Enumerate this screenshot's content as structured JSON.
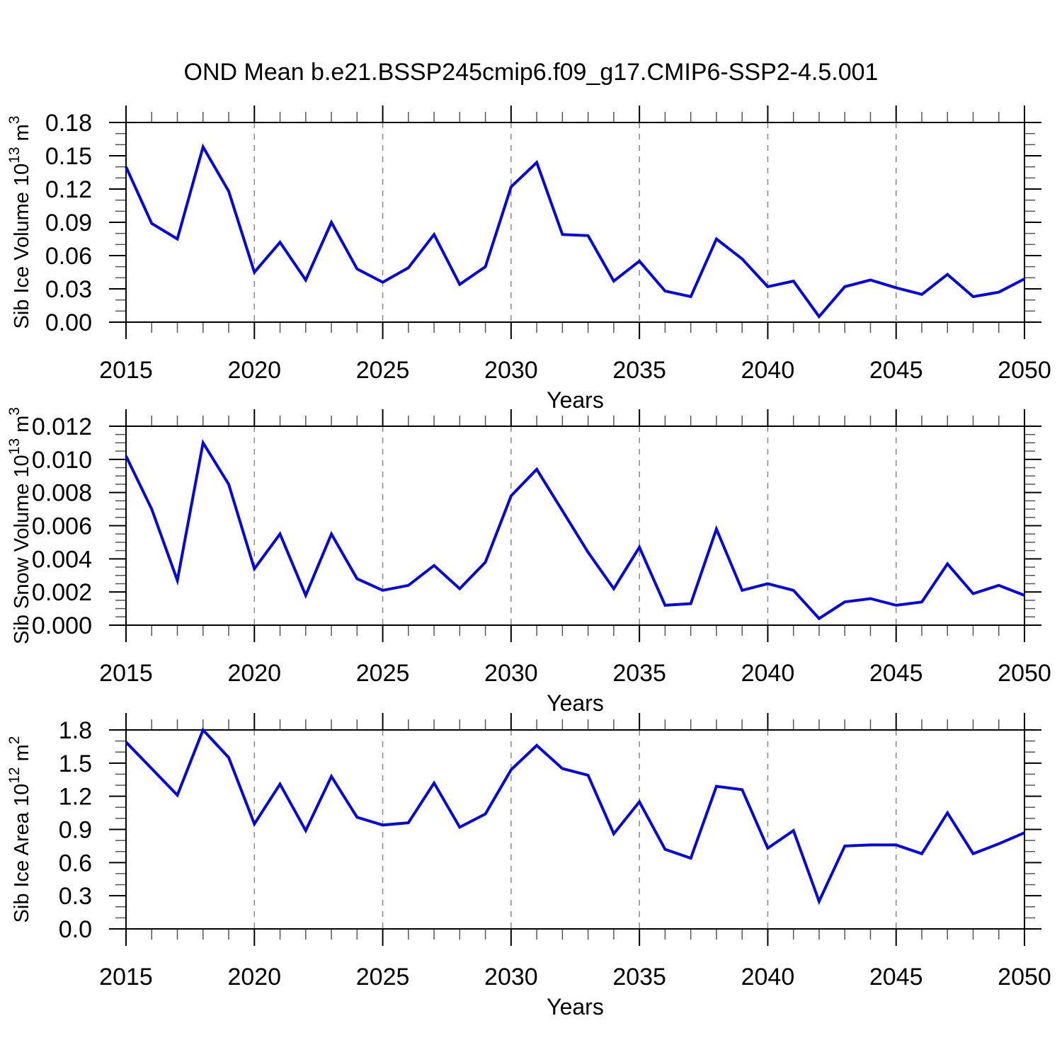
{
  "title": "OND Mean b.e21.BSSP245cmip6.f09_g17.CMIP6-SSP2-4.5.001",
  "style": {
    "line_color": "#0505e0",
    "grid_color": "#888888",
    "axis_color": "#000000",
    "minor_tick_color": "#555555"
  },
  "chart_data": [
    {
      "type": "line",
      "name": "sib-ice-volume",
      "xlabel": "Years",
      "ylabel": "Sib Ice Volume 10^13 m^3",
      "ylabel_parts": [
        {
          "t": "Sib Ice Volume 10"
        },
        {
          "t": "13",
          "sup": true
        },
        {
          "t": " m"
        },
        {
          "t": "3",
          "sup": true
        }
      ],
      "x": [
        2015,
        2016,
        2017,
        2018,
        2019,
        2020,
        2021,
        2022,
        2023,
        2024,
        2025,
        2026,
        2027,
        2028,
        2029,
        2030,
        2031,
        2032,
        2033,
        2034,
        2035,
        2036,
        2037,
        2038,
        2039,
        2040,
        2041,
        2042,
        2043,
        2044,
        2045,
        2046,
        2047,
        2048,
        2049,
        2050
      ],
      "series": [
        {
          "name": "Sib Ice Volume",
          "values": [
            0.14,
            0.089,
            0.075,
            0.158,
            0.118,
            0.045,
            0.072,
            0.038,
            0.09,
            0.048,
            0.036,
            0.049,
            0.079,
            0.034,
            0.05,
            0.122,
            0.144,
            0.079,
            0.078,
            0.037,
            0.055,
            0.028,
            0.023,
            0.075,
            0.057,
            0.032,
            0.037,
            0.005,
            0.032,
            0.038,
            0.031,
            0.025,
            0.043,
            0.023,
            0.027,
            0.039
          ]
        }
      ],
      "xlim": [
        2015,
        2050
      ],
      "ylim": [
        0,
        0.18
      ],
      "xtick_values": [
        2015,
        2020,
        2025,
        2030,
        2035,
        2040,
        2045,
        2050
      ],
      "xtick_labels": [
        "2015",
        "2020",
        "2025",
        "2030",
        "2035",
        "2040",
        "2045",
        "2050"
      ],
      "x_minor_step": 1,
      "ytick_values": [
        0.0,
        0.03,
        0.06,
        0.09,
        0.12,
        0.15,
        0.18
      ],
      "ytick_labels": [
        "0.00",
        "0.03",
        "0.06",
        "0.09",
        "0.12",
        "0.15",
        "0.18"
      ],
      "y_minor_step": 0.01,
      "grid_x": [
        2020,
        2025,
        2030,
        2035,
        2040,
        2045
      ],
      "grid_style": "vertical-dashed",
      "legend": "none"
    },
    {
      "type": "line",
      "name": "sib-snow-volume",
      "xlabel": "Years",
      "ylabel": "Sib Snow Volume 10^13 m^3",
      "ylabel_parts": [
        {
          "t": "Sib Snow Volume 10"
        },
        {
          "t": "13",
          "sup": true
        },
        {
          "t": " m"
        },
        {
          "t": "3",
          "sup": true
        }
      ],
      "x": [
        2015,
        2016,
        2017,
        2018,
        2019,
        2020,
        2021,
        2022,
        2023,
        2024,
        2025,
        2026,
        2027,
        2028,
        2029,
        2030,
        2031,
        2032,
        2033,
        2034,
        2035,
        2036,
        2037,
        2038,
        2039,
        2040,
        2041,
        2042,
        2043,
        2044,
        2045,
        2046,
        2047,
        2048,
        2049,
        2050
      ],
      "series": [
        {
          "name": "Sib Snow Volume",
          "values": [
            0.0102,
            0.007,
            0.0027,
            0.011,
            0.0085,
            0.0034,
            0.0055,
            0.0018,
            0.0055,
            0.0028,
            0.0021,
            0.0024,
            0.0036,
            0.0022,
            0.0038,
            0.0078,
            0.0094,
            0.0069,
            0.0044,
            0.0022,
            0.0047,
            0.0012,
            0.0013,
            0.0058,
            0.0021,
            0.0025,
            0.0021,
            0.0004,
            0.0014,
            0.0016,
            0.0012,
            0.0014,
            0.0037,
            0.0019,
            0.0024,
            0.0018
          ]
        }
      ],
      "xlim": [
        2015,
        2050
      ],
      "ylim": [
        0,
        0.012
      ],
      "xtick_values": [
        2015,
        2020,
        2025,
        2030,
        2035,
        2040,
        2045,
        2050
      ],
      "xtick_labels": [
        "2015",
        "2020",
        "2025",
        "2030",
        "2035",
        "2040",
        "2045",
        "2050"
      ],
      "x_minor_step": 1,
      "ytick_values": [
        0.0,
        0.002,
        0.004,
        0.006,
        0.008,
        0.01,
        0.012
      ],
      "ytick_labels": [
        "0.000",
        "0.002",
        "0.004",
        "0.006",
        "0.008",
        "0.010",
        "0.012"
      ],
      "y_minor_step": 0.0005,
      "grid_x": [
        2020,
        2025,
        2030,
        2035,
        2040,
        2045
      ],
      "grid_style": "vertical-dashed",
      "legend": "none"
    },
    {
      "type": "line",
      "name": "sib-ice-area",
      "xlabel": "Years",
      "ylabel": "Sib Ice Area 10^12 m^2",
      "ylabel_parts": [
        {
          "t": "Sib Ice Area 10"
        },
        {
          "t": "12",
          "sup": true
        },
        {
          "t": " m"
        },
        {
          "t": "2",
          "sup": true
        }
      ],
      "x": [
        2015,
        2016,
        2017,
        2018,
        2019,
        2020,
        2021,
        2022,
        2023,
        2024,
        2025,
        2026,
        2027,
        2028,
        2029,
        2030,
        2031,
        2032,
        2033,
        2034,
        2035,
        2036,
        2037,
        2038,
        2039,
        2040,
        2041,
        2042,
        2043,
        2044,
        2045,
        2046,
        2047,
        2048,
        2049,
        2050
      ],
      "series": [
        {
          "name": "Sib Ice Area",
          "values": [
            1.69,
            1.45,
            1.21,
            1.8,
            1.55,
            0.95,
            1.31,
            0.89,
            1.38,
            1.01,
            0.94,
            0.96,
            1.32,
            0.92,
            1.04,
            1.44,
            1.66,
            1.45,
            1.39,
            0.86,
            1.15,
            0.72,
            0.64,
            1.29,
            1.26,
            0.73,
            0.89,
            0.25,
            0.75,
            0.76,
            0.76,
            0.68,
            1.05,
            0.68,
            0.77,
            0.87
          ]
        }
      ],
      "xlim": [
        2015,
        2050
      ],
      "ylim": [
        0,
        1.8
      ],
      "xtick_values": [
        2015,
        2020,
        2025,
        2030,
        2035,
        2040,
        2045,
        2050
      ],
      "xtick_labels": [
        "2015",
        "2020",
        "2025",
        "2030",
        "2035",
        "2040",
        "2045",
        "2050"
      ],
      "x_minor_step": 1,
      "ytick_values": [
        0.0,
        0.3,
        0.6,
        0.9,
        1.2,
        1.5,
        1.8
      ],
      "ytick_labels": [
        "0.0",
        "0.3",
        "0.6",
        "0.9",
        "1.2",
        "1.5",
        "1.8"
      ],
      "y_minor_step": 0.1,
      "grid_x": [
        2020,
        2025,
        2030,
        2035,
        2040,
        2045
      ],
      "grid_style": "vertical-dashed",
      "legend": "none"
    }
  ]
}
